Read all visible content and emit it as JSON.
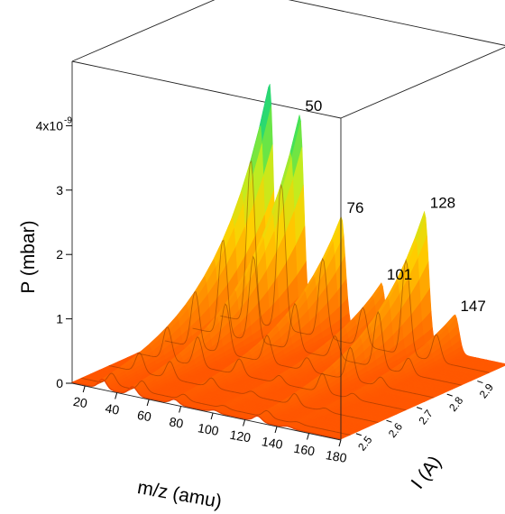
{
  "chart_data": {
    "type": "surface",
    "ylabel": "P (mbar)",
    "xlabel": "m/z (amu)",
    "zlabel": "I (A)",
    "y_ticks": [
      "0",
      "1",
      "2",
      "3",
      "4x10"
    ],
    "y_tick_exponent": "-9",
    "x_ticks": [
      "20",
      "40",
      "60",
      "80",
      "100",
      "120",
      "140",
      "160",
      "180"
    ],
    "z_ticks": [
      "2.5",
      "2.6",
      "2.7",
      "2.8",
      "2.9"
    ],
    "xlim": [
      12,
      180
    ],
    "ylim": [
      0,
      5
    ],
    "zlim": [
      2.45,
      3.0
    ],
    "peak_labels": [
      {
        "mz": 50,
        "label": "50"
      },
      {
        "mz": 76,
        "label": "76"
      },
      {
        "mz": 101,
        "label": "101"
      },
      {
        "mz": 128,
        "label": "128"
      },
      {
        "mz": 147,
        "label": "147"
      }
    ],
    "peaks": [
      {
        "mz": 31,
        "height": 3.6
      },
      {
        "mz": 50,
        "height": 3.2
      },
      {
        "mz": 76,
        "height": 1.75
      },
      {
        "mz": 101,
        "height": 0.85
      },
      {
        "mz": 128,
        "height": 2.1
      },
      {
        "mz": 147,
        "height": 0.6
      }
    ],
    "growth": "pressure rises steeply with current I",
    "colormap": [
      "#ff5500",
      "#ff8c00",
      "#ffd000",
      "#c0ec20",
      "#2ee060",
      "#18b0c8",
      "#1424a0"
    ]
  }
}
